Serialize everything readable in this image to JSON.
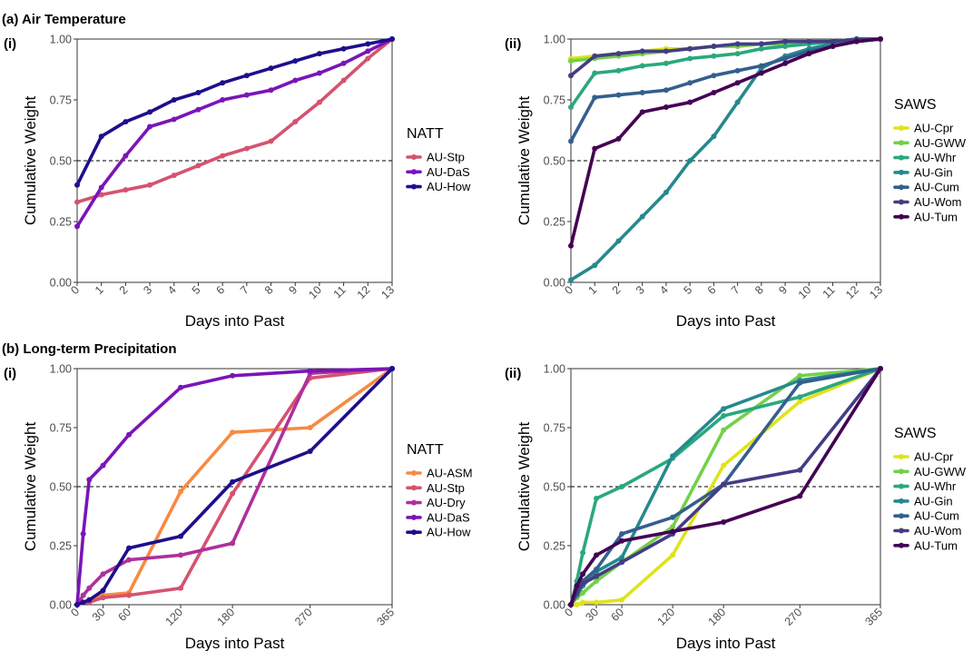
{
  "sections": [
    {
      "label": "(a) Air Temperature"
    },
    {
      "label": "(b) Long-term Precipitation"
    }
  ],
  "chart_data": [
    {
      "type": "line",
      "panel_label": "(i)",
      "xlabel": "Days into Past",
      "ylabel": "Cumulative Weight",
      "x": [
        0,
        1,
        2,
        3,
        4,
        5,
        6,
        7,
        8,
        9,
        10,
        11,
        12,
        13
      ],
      "x_ticks": [
        "0",
        "1",
        "2",
        "3",
        "4",
        "5",
        "6",
        "7",
        "8",
        "9",
        "10",
        "11",
        "12",
        "13"
      ],
      "xlim": [
        0,
        13
      ],
      "ylim": [
        0,
        1
      ],
      "y_ticks": [
        "0.00",
        "0.25",
        "0.50",
        "0.75",
        "1.00"
      ],
      "reference_line": 0.5,
      "legend_title": "NATT",
      "series": [
        {
          "name": "AU-Stp",
          "color": "#d5536f",
          "values": [
            0.33,
            0.36,
            0.38,
            0.4,
            0.44,
            0.48,
            0.52,
            0.55,
            0.58,
            0.66,
            0.74,
            0.83,
            0.92,
            1.0
          ]
        },
        {
          "name": "AU-DaS",
          "color": "#7a14b8",
          "values": [
            0.23,
            0.39,
            0.52,
            0.64,
            0.67,
            0.71,
            0.75,
            0.77,
            0.79,
            0.83,
            0.86,
            0.9,
            0.95,
            1.0
          ]
        },
        {
          "name": "AU-How",
          "color": "#1d0f8c",
          "values": [
            0.4,
            0.6,
            0.66,
            0.7,
            0.75,
            0.78,
            0.82,
            0.85,
            0.88,
            0.91,
            0.94,
            0.96,
            0.98,
            1.0
          ]
        }
      ]
    },
    {
      "type": "line",
      "panel_label": "(ii)",
      "xlabel": "Days into Past",
      "ylabel": "Cumulative Weight",
      "x": [
        0,
        1,
        2,
        3,
        4,
        5,
        6,
        7,
        8,
        9,
        10,
        11,
        12,
        13
      ],
      "x_ticks": [
        "0",
        "1",
        "2",
        "3",
        "4",
        "5",
        "6",
        "7",
        "8",
        "9",
        "10",
        "11",
        "12",
        "13"
      ],
      "xlim": [
        0,
        13
      ],
      "ylim": [
        0,
        1
      ],
      "y_ticks": [
        "0.00",
        "0.25",
        "0.50",
        "0.75",
        "1.00"
      ],
      "reference_line": 0.5,
      "legend_title": "SAWS",
      "series": [
        {
          "name": "AU-Cpr",
          "color": "#dfe31b",
          "values": [
            0.92,
            0.93,
            0.94,
            0.95,
            0.96,
            0.96,
            0.97,
            0.97,
            0.98,
            0.98,
            0.99,
            0.99,
            1.0,
            1.0
          ]
        },
        {
          "name": "AU-GWW",
          "color": "#73d04a",
          "values": [
            0.91,
            0.92,
            0.93,
            0.94,
            0.95,
            0.96,
            0.97,
            0.97,
            0.98,
            0.98,
            0.99,
            0.99,
            1.0,
            1.0
          ]
        },
        {
          "name": "AU-Whr",
          "color": "#2aa87d",
          "values": [
            0.72,
            0.86,
            0.87,
            0.89,
            0.9,
            0.92,
            0.93,
            0.94,
            0.96,
            0.97,
            0.98,
            0.99,
            1.0,
            1.0
          ]
        },
        {
          "name": "AU-Gin",
          "color": "#25898e",
          "values": [
            0.01,
            0.07,
            0.17,
            0.27,
            0.37,
            0.5,
            0.6,
            0.74,
            0.88,
            0.93,
            0.96,
            0.98,
            0.99,
            1.0
          ]
        },
        {
          "name": "AU-Cum",
          "color": "#345f8d",
          "values": [
            0.58,
            0.76,
            0.77,
            0.78,
            0.79,
            0.82,
            0.85,
            0.87,
            0.89,
            0.92,
            0.95,
            0.97,
            0.99,
            1.0
          ]
        },
        {
          "name": "AU-Wom",
          "color": "#433d84",
          "values": [
            0.85,
            0.93,
            0.94,
            0.95,
            0.95,
            0.96,
            0.97,
            0.98,
            0.98,
            0.99,
            0.99,
            0.99,
            1.0,
            1.0
          ]
        },
        {
          "name": "AU-Tum",
          "color": "#440154",
          "values": [
            0.15,
            0.55,
            0.59,
            0.7,
            0.72,
            0.74,
            0.78,
            0.82,
            0.86,
            0.9,
            0.94,
            0.97,
            0.99,
            1.0
          ]
        }
      ]
    },
    {
      "type": "line",
      "panel_label": "(i)",
      "xlabel": "Days into Past",
      "ylabel": "Cumulative Weight",
      "x": [
        0,
        7,
        14,
        30,
        60,
        120,
        180,
        270,
        365
      ],
      "x_ticks": [
        "0",
        "30",
        "60",
        "120",
        "180",
        "270",
        "365"
      ],
      "x_tick_values": [
        0,
        30,
        60,
        120,
        180,
        270,
        365
      ],
      "xlim": [
        0,
        365
      ],
      "ylim": [
        0,
        1
      ],
      "y_ticks": [
        "0.00",
        "0.25",
        "0.50",
        "0.75",
        "1.00"
      ],
      "reference_line": 0.5,
      "legend_title": "NATT",
      "series": [
        {
          "name": "AU-ASM",
          "color": "#f78a42",
          "values": [
            0.0,
            0.01,
            0.02,
            0.04,
            0.05,
            0.48,
            0.73,
            0.75,
            1.0
          ]
        },
        {
          "name": "AU-Stp",
          "color": "#d5536f",
          "values": [
            0.0,
            0.01,
            0.01,
            0.03,
            0.04,
            0.07,
            0.47,
            0.96,
            1.0
          ]
        },
        {
          "name": "AU-Dry",
          "color": "#b02f9c",
          "values": [
            0.0,
            0.04,
            0.07,
            0.13,
            0.19,
            0.21,
            0.26,
            0.98,
            1.0
          ]
        },
        {
          "name": "AU-DaS",
          "color": "#7a14b8",
          "values": [
            0.0,
            0.3,
            0.53,
            0.59,
            0.72,
            0.92,
            0.97,
            0.99,
            1.0
          ]
        },
        {
          "name": "AU-How",
          "color": "#1d0f8c",
          "values": [
            0.0,
            0.01,
            0.02,
            0.06,
            0.24,
            0.29,
            0.52,
            0.65,
            1.0
          ]
        }
      ]
    },
    {
      "type": "line",
      "panel_label": "(ii)",
      "xlabel": "Days into Past",
      "ylabel": "Cumulative Weight",
      "x": [
        0,
        7,
        14,
        30,
        60,
        120,
        180,
        270,
        365
      ],
      "x_ticks": [
        "0",
        "30",
        "60",
        "120",
        "180",
        "270",
        "365"
      ],
      "x_tick_values": [
        0,
        30,
        60,
        120,
        180,
        270,
        365
      ],
      "xlim": [
        0,
        365
      ],
      "ylim": [
        0,
        1
      ],
      "y_ticks": [
        "0.00",
        "0.25",
        "0.50",
        "0.75",
        "1.00"
      ],
      "reference_line": 0.5,
      "legend_title": "SAWS",
      "series": [
        {
          "name": "AU-Cpr",
          "color": "#dfe31b",
          "values": [
            0.0,
            0.0,
            0.01,
            0.01,
            0.02,
            0.21,
            0.59,
            0.86,
            1.0
          ]
        },
        {
          "name": "AU-GWW",
          "color": "#73d04a",
          "values": [
            0.0,
            0.03,
            0.05,
            0.1,
            0.18,
            0.33,
            0.74,
            0.97,
            1.0
          ]
        },
        {
          "name": "AU-Whr",
          "color": "#2aa87d",
          "values": [
            0.0,
            0.1,
            0.22,
            0.45,
            0.5,
            0.62,
            0.8,
            0.88,
            1.0
          ]
        },
        {
          "name": "AU-Gin",
          "color": "#25898e",
          "values": [
            0.0,
            0.04,
            0.08,
            0.14,
            0.2,
            0.63,
            0.83,
            0.95,
            1.0
          ]
        },
        {
          "name": "AU-Cum",
          "color": "#345f8d",
          "values": [
            0.0,
            0.05,
            0.1,
            0.15,
            0.3,
            0.37,
            0.51,
            0.94,
            1.0
          ]
        },
        {
          "name": "AU-Wom",
          "color": "#433d84",
          "values": [
            0.0,
            0.05,
            0.09,
            0.12,
            0.18,
            0.3,
            0.51,
            0.57,
            1.0
          ]
        },
        {
          "name": "AU-Tum",
          "color": "#440154",
          "values": [
            0.0,
            0.08,
            0.13,
            0.21,
            0.27,
            0.31,
            0.35,
            0.46,
            1.0
          ]
        }
      ]
    }
  ]
}
